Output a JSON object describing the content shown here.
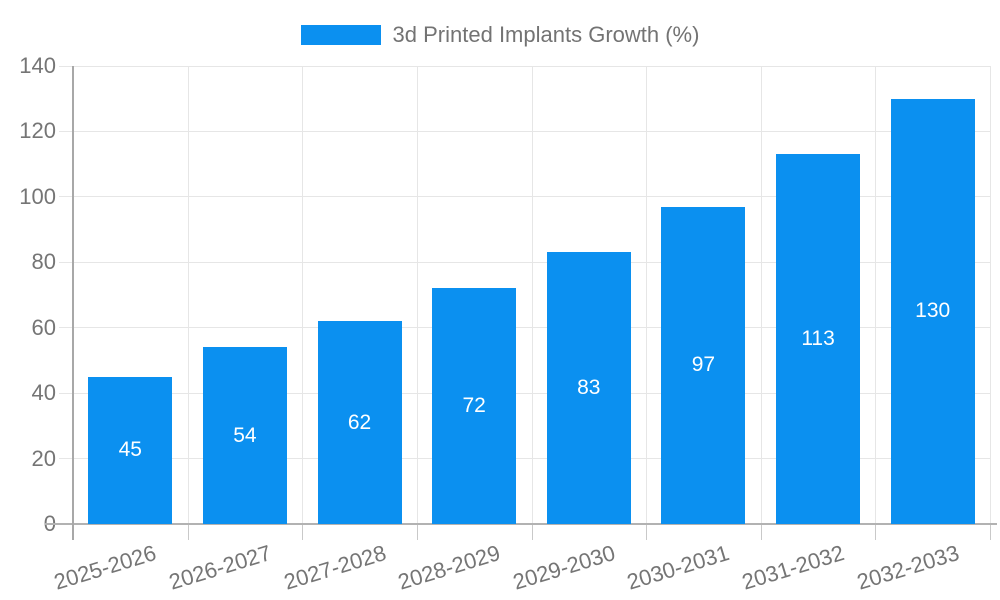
{
  "chart_data": {
    "type": "bar",
    "title": "",
    "legend": {
      "label": "3d Printed Implants Growth (%)",
      "position": "top"
    },
    "categories": [
      "2025-2026",
      "2026-2027",
      "2027-2028",
      "2028-2029",
      "2029-2030",
      "2030-2031",
      "2031-2032",
      "2032-2033"
    ],
    "series": [
      {
        "name": "3d Printed Implants Growth (%)",
        "values": [
          45,
          54,
          62,
          72,
          83,
          97,
          113,
          130
        ]
      }
    ],
    "xlabel": "",
    "ylabel": "",
    "ylim": [
      0,
      140
    ],
    "yticks": [
      0,
      20,
      40,
      60,
      80,
      100,
      120,
      140
    ],
    "grid": true,
    "value_labels": "inside-center",
    "x_label_rotation_deg": -17,
    "colors": {
      "bar": "#0b90f0",
      "grid_line": "#e6e6e6",
      "axis_line": "#a8a8a8",
      "baseline": "#b2b2b2",
      "tick": "#c9c9c9",
      "tick_label": "#757575",
      "value_label": "#ffffff",
      "legend_text": "#737373",
      "background": "#ffffff"
    }
  }
}
